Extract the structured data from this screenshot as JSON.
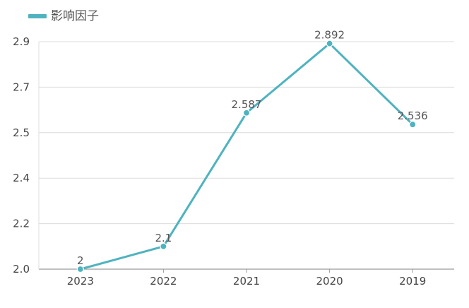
{
  "chart_data": {
    "type": "line",
    "title": "",
    "xlabel": "",
    "ylabel": "",
    "categories": [
      "2023",
      "2022",
      "2021",
      "2020",
      "2019"
    ],
    "series": [
      {
        "name": "影响因子",
        "values": [
          2,
          2.1,
          2.587,
          2.892,
          2.536
        ],
        "data_labels": [
          "2",
          "2.1",
          "2.587",
          "2.892",
          "2.536"
        ],
        "color": "#4fb3bf"
      }
    ],
    "y_ticks": [
      {
        "value": 2.0,
        "label": "2.0"
      },
      {
        "value": 2.2,
        "label": "2.2"
      },
      {
        "value": 2.4,
        "label": "2.4"
      },
      {
        "value": 2.5,
        "label": "2.5"
      },
      {
        "value": 2.7,
        "label": "2.7"
      },
      {
        "value": 2.9,
        "label": "2.9"
      }
    ],
    "grid": true,
    "legend_position": "top-left"
  }
}
